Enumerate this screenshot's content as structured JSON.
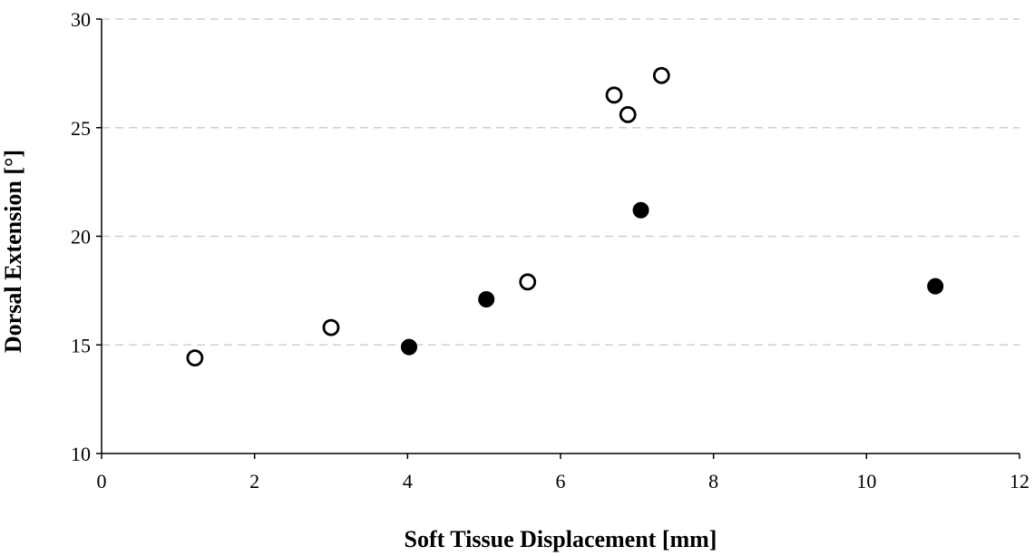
{
  "chart_data": {
    "type": "scatter",
    "xlabel": "Soft Tissue Displacement [mm]",
    "ylabel": "Dorsal Extension [°]",
    "xlim": [
      0,
      12
    ],
    "ylim": [
      10,
      30
    ],
    "xticks": [
      "0",
      "2",
      "4",
      "6",
      "8",
      "10",
      "12"
    ],
    "yticks": [
      "10",
      "15",
      "20",
      "25",
      "30"
    ],
    "grid": "horizontal dashed",
    "legend": "none",
    "series": [
      {
        "marker": "open-circle",
        "color": "#000000",
        "points": [
          {
            "x": 1.22,
            "y": 14.4
          },
          {
            "x": 3.0,
            "y": 15.8
          },
          {
            "x": 5.57,
            "y": 17.9
          },
          {
            "x": 6.7,
            "y": 26.5
          },
          {
            "x": 6.88,
            "y": 25.6
          },
          {
            "x": 7.32,
            "y": 27.4
          }
        ]
      },
      {
        "marker": "filled-circle",
        "color": "#000000",
        "points": [
          {
            "x": 4.02,
            "y": 14.9
          },
          {
            "x": 5.03,
            "y": 17.1
          },
          {
            "x": 7.05,
            "y": 21.2
          },
          {
            "x": 10.9,
            "y": 17.7
          }
        ]
      }
    ]
  }
}
